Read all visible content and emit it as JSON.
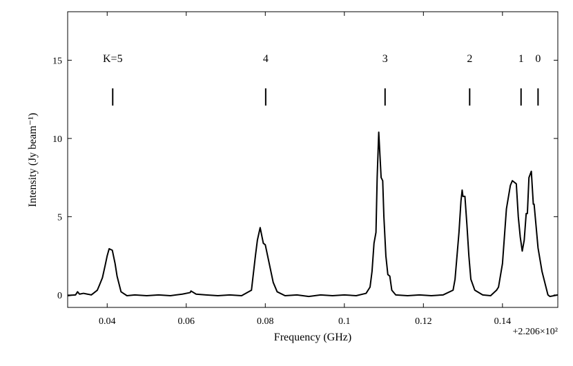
{
  "chart_data": {
    "type": "line",
    "xlabel": "Frequency (GHz)",
    "ylabel": "Intensity (Jy beam⁻¹)",
    "offset_label": "+2.206×10²",
    "color": "#000000",
    "xlim": [
      0.03,
      0.154
    ],
    "ylim": [
      -0.8,
      18.1
    ],
    "xticks": [
      0.04,
      0.06,
      0.08,
      0.1,
      0.12,
      0.14
    ],
    "yticks": [
      0,
      5,
      10,
      15
    ],
    "x": [
      0.03,
      0.031,
      0.032,
      0.0325,
      0.033,
      0.034,
      0.035,
      0.036,
      0.037,
      0.0375,
      0.038,
      0.0388,
      0.0395,
      0.04,
      0.0405,
      0.0413,
      0.042,
      0.0425,
      0.0435,
      0.045,
      0.047,
      0.05,
      0.053,
      0.056,
      0.059,
      0.061,
      0.0612,
      0.0625,
      0.065,
      0.068,
      0.071,
      0.074,
      0.0765,
      0.0775,
      0.078,
      0.0787,
      0.0795,
      0.08,
      0.081,
      0.082,
      0.083,
      0.085,
      0.088,
      0.091,
      0.094,
      0.097,
      0.1,
      0.103,
      0.1055,
      0.1065,
      0.107,
      0.1075,
      0.108,
      0.1083,
      0.1087,
      0.1093,
      0.1097,
      0.11,
      0.1105,
      0.111,
      0.1115,
      0.112,
      0.113,
      0.116,
      0.119,
      0.122,
      0.125,
      0.1275,
      0.128,
      0.1285,
      0.129,
      0.1295,
      0.1298,
      0.13,
      0.1305,
      0.131,
      0.1315,
      0.132,
      0.133,
      0.135,
      0.137,
      0.1385,
      0.139,
      0.14,
      0.141,
      0.142,
      0.1425,
      0.1435,
      0.144,
      0.1445,
      0.145,
      0.1455,
      0.146,
      0.1463,
      0.1467,
      0.1473,
      0.1478,
      0.148,
      0.149,
      0.15,
      0.1505,
      0.1515,
      0.152,
      0.153,
      0.154
    ],
    "values": [
      -0.05,
      -0.02,
      0.0,
      0.2,
      0.05,
      0.1,
      0.05,
      0.0,
      0.2,
      0.3,
      0.6,
      1.1,
      1.9,
      2.5,
      2.95,
      2.85,
      2.0,
      1.2,
      0.2,
      -0.05,
      0.0,
      -0.05,
      0.0,
      -0.05,
      0.05,
      0.15,
      0.25,
      0.05,
      0.0,
      -0.05,
      0.0,
      -0.05,
      0.3,
      2.5,
      3.5,
      4.3,
      3.3,
      3.2,
      2.0,
      0.8,
      0.2,
      -0.05,
      0.0,
      -0.1,
      0.0,
      -0.05,
      0.0,
      -0.05,
      0.1,
      0.5,
      1.5,
      3.3,
      4.0,
      7.5,
      10.4,
      7.5,
      7.3,
      5.0,
      2.5,
      1.3,
      1.2,
      0.3,
      0.0,
      -0.05,
      0.0,
      -0.05,
      0.0,
      0.3,
      1.0,
      2.5,
      4.0,
      6.0,
      6.7,
      6.3,
      6.3,
      4.5,
      2.5,
      1.0,
      0.3,
      0.0,
      -0.05,
      0.3,
      0.5,
      2.0,
      5.5,
      7.0,
      7.3,
      7.1,
      5.0,
      3.7,
      2.8,
      3.5,
      5.2,
      5.2,
      7.5,
      7.9,
      5.8,
      5.8,
      3.0,
      1.5,
      1.0,
      0.0,
      -0.1,
      -0.05,
      0.0
    ],
    "annotations": [
      {
        "text": "K=5",
        "x": 0.0414
      },
      {
        "text": "4",
        "x": 0.0801
      },
      {
        "text": "3",
        "x": 0.1103
      },
      {
        "text": "2",
        "x": 0.1317
      },
      {
        "text": "1",
        "x": 0.1447
      },
      {
        "text": "0",
        "x": 0.149
      }
    ],
    "annotation_marker_range": [
      12.1,
      13.2
    ]
  }
}
